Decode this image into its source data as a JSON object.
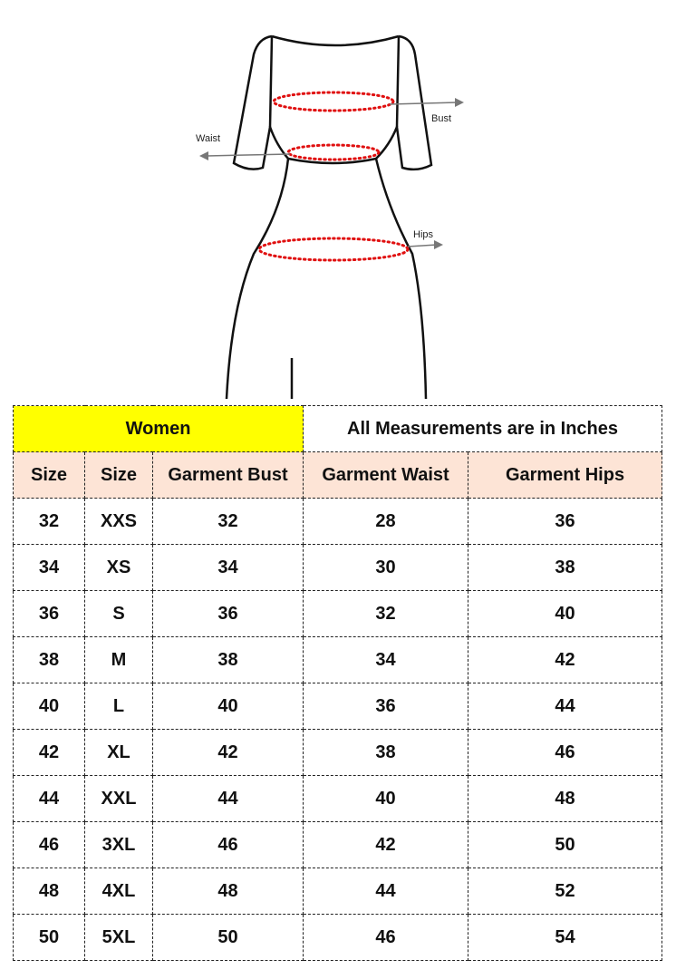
{
  "diagram": {
    "labels": {
      "bust": "Bust",
      "waist": "Waist",
      "hips": "Hips"
    }
  },
  "table": {
    "title_left": "Women",
    "title_right": "All Measurements are in Inches",
    "headers": [
      "Size",
      "Size",
      "Garment Bust",
      "Garment Waist",
      "Garment Hips"
    ],
    "rows": [
      [
        32,
        "XXS",
        32,
        28,
        36
      ],
      [
        34,
        "XS",
        34,
        30,
        38
      ],
      [
        36,
        "S",
        36,
        32,
        40
      ],
      [
        38,
        "M",
        38,
        34,
        42
      ],
      [
        40,
        "L",
        40,
        36,
        44
      ],
      [
        42,
        "XL",
        42,
        38,
        46
      ],
      [
        44,
        "XXL",
        44,
        40,
        48
      ],
      [
        46,
        "3XL",
        46,
        42,
        50
      ],
      [
        48,
        "4XL",
        48,
        44,
        52
      ],
      [
        50,
        "5XL",
        50,
        46,
        54
      ]
    ]
  }
}
